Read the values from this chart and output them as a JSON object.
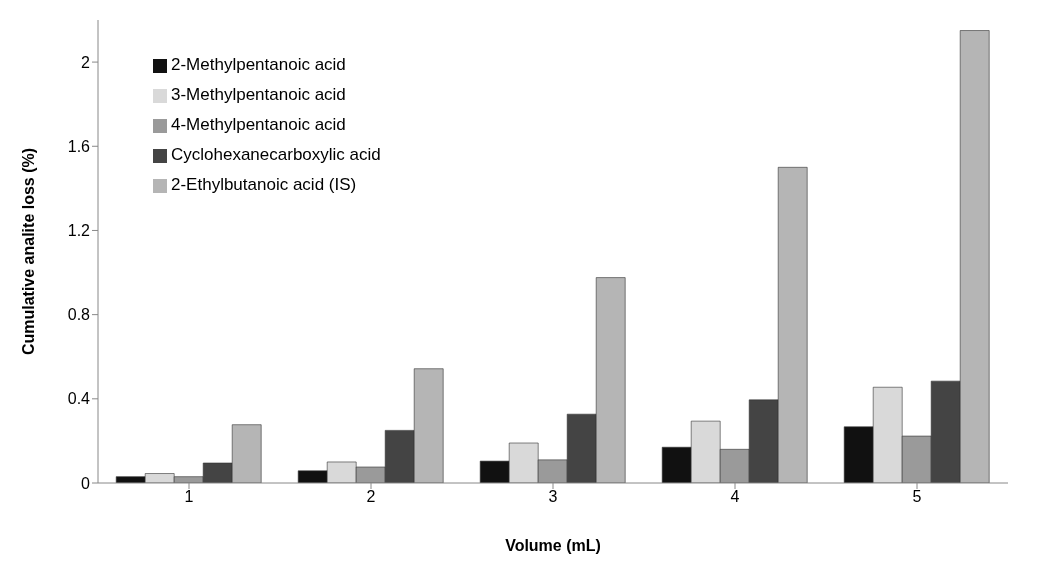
{
  "chart_data": {
    "type": "bar",
    "xlabel": "Volume (mL)",
    "ylabel": "Cumulative analite loss (%)",
    "categories": [
      "1",
      "2",
      "3",
      "4",
      "5"
    ],
    "series": [
      {
        "name": "2-Methylpentanoic acid",
        "color": "#111111",
        "values": [
          0.03,
          0.058,
          0.104,
          0.17,
          0.267
        ]
      },
      {
        "name": "3-Methylpentanoic acid",
        "color": "#d9d9d9",
        "values": [
          0.045,
          0.1,
          0.19,
          0.294,
          0.455
        ]
      },
      {
        "name": "4-Methylpentanoic acid",
        "color": "#9a9a9a",
        "values": [
          0.03,
          0.076,
          0.11,
          0.16,
          0.223
        ]
      },
      {
        "name": "Cyclohexanecarboxylic acid",
        "color": "#444444",
        "values": [
          0.095,
          0.25,
          0.327,
          0.395,
          0.484
        ]
      },
      {
        "name": "2-Ethylbutanoic acid (IS)",
        "color": "#b5b5b5",
        "values": [
          0.277,
          0.543,
          0.976,
          1.5,
          2.15
        ]
      }
    ],
    "ylim": [
      0,
      2.2
    ],
    "yticks": [
      0,
      0.4,
      0.8,
      1.2,
      1.6,
      2
    ],
    "grid": false,
    "legend": "top left"
  }
}
